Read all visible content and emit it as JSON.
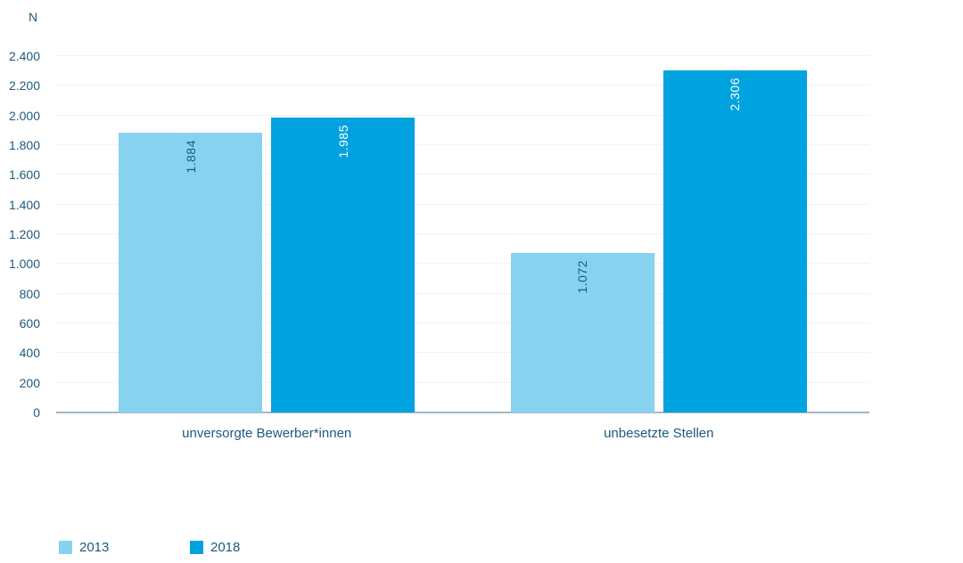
{
  "chart_data": {
    "type": "bar",
    "title": "",
    "ylabel": "N",
    "xlabel": "",
    "categories": [
      "unversorgte Bewerber*innen",
      "unbesetzte Stellen"
    ],
    "series": [
      {
        "name": "2013",
        "color": "#86D2EF",
        "values": [
          1884,
          1072
        ],
        "value_labels": [
          "1.884",
          "1.072"
        ],
        "value_label_color": "#1E5A7D"
      },
      {
        "name": "2018",
        "color": "#00A3DF",
        "values": [
          1985,
          2306
        ],
        "value_labels": [
          "1.985",
          "2.306"
        ],
        "value_label_color": "#FFFFFF"
      }
    ],
    "ylim": [
      0,
      2400
    ],
    "ytick_step": 200,
    "ytick_labels": [
      "0",
      "200",
      "400",
      "600",
      "800",
      "1.000",
      "1.200",
      "1.400",
      "1.600",
      "1.800",
      "2.000",
      "2.200",
      "2.400"
    ],
    "grid": true,
    "legend_position": "bottom-left"
  },
  "colors": {
    "text": "#1E5A7D",
    "gridline": "#F2F2F2",
    "baseline": "#A8B7C3",
    "background": "#FFFFFF"
  }
}
